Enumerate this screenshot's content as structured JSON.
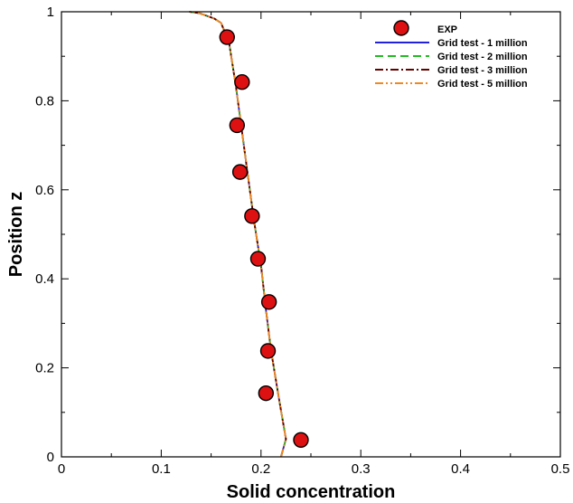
{
  "chart_data": {
    "type": "line",
    "xlabel": "Solid concentration",
    "ylabel": "Position z",
    "xlim": [
      0,
      0.5
    ],
    "ylim": [
      0,
      1
    ],
    "xticks": [
      0,
      0.1,
      0.2,
      0.3,
      0.4,
      0.5
    ],
    "yticks": [
      0,
      0.2,
      0.4,
      0.6,
      0.8,
      1
    ],
    "xtick_labels": [
      "0",
      "0.1",
      "0.2",
      "0.3",
      "0.4",
      "0.5"
    ],
    "ytick_labels": [
      "0",
      "0.2",
      "0.4",
      "0.6",
      "0.8",
      "1"
    ],
    "grid": false,
    "legend_position": "top-right",
    "series": [
      {
        "name": "EXP",
        "style": "marker",
        "color": "#dd1111",
        "x": [
          0.24,
          0.205,
          0.207,
          0.208,
          0.197,
          0.191,
          0.179,
          0.176,
          0.181,
          0.166
        ],
        "y": [
          0.038,
          0.143,
          0.238,
          0.348,
          0.445,
          0.541,
          0.64,
          0.745,
          0.842,
          0.943
        ]
      },
      {
        "name": "Grid test - 1 million",
        "style": "solid",
        "color": "#2222dd",
        "x": [
          0.22,
          0.225,
          0.218,
          0.21,
          0.205,
          0.2,
          0.193,
          0.187,
          0.181,
          0.175,
          0.168,
          0.16,
          0.153,
          0.138,
          0.128
        ],
        "y": [
          0.0,
          0.04,
          0.13,
          0.24,
          0.33,
          0.43,
          0.53,
          0.63,
          0.73,
          0.83,
          0.93,
          0.975,
          0.985,
          0.997,
          1.0
        ]
      },
      {
        "name": "Grid test - 2 million",
        "style": "dashed",
        "color": "#22bb22",
        "x": [
          0.22,
          0.225,
          0.218,
          0.21,
          0.205,
          0.2,
          0.193,
          0.187,
          0.181,
          0.175,
          0.168,
          0.16,
          0.153,
          0.138,
          0.128
        ],
        "y": [
          0.0,
          0.04,
          0.13,
          0.24,
          0.33,
          0.43,
          0.53,
          0.63,
          0.73,
          0.83,
          0.93,
          0.975,
          0.985,
          0.997,
          1.0
        ]
      },
      {
        "name": "Grid test - 3 million",
        "style": "dashdot",
        "color": "#660000",
        "x": [
          0.22,
          0.225,
          0.218,
          0.21,
          0.205,
          0.2,
          0.193,
          0.187,
          0.181,
          0.175,
          0.168,
          0.16,
          0.153,
          0.138,
          0.128
        ],
        "y": [
          0.0,
          0.04,
          0.13,
          0.24,
          0.33,
          0.43,
          0.53,
          0.63,
          0.73,
          0.83,
          0.93,
          0.975,
          0.985,
          0.997,
          1.0
        ]
      },
      {
        "name": "Grid test - 5 million",
        "style": "dashdotdot",
        "color": "#ee8822",
        "x": [
          0.22,
          0.225,
          0.218,
          0.21,
          0.205,
          0.2,
          0.193,
          0.187,
          0.181,
          0.175,
          0.168,
          0.16,
          0.153,
          0.138,
          0.128
        ],
        "y": [
          0.0,
          0.04,
          0.13,
          0.24,
          0.33,
          0.43,
          0.53,
          0.63,
          0.73,
          0.83,
          0.93,
          0.975,
          0.985,
          0.997,
          1.0
        ]
      }
    ]
  }
}
